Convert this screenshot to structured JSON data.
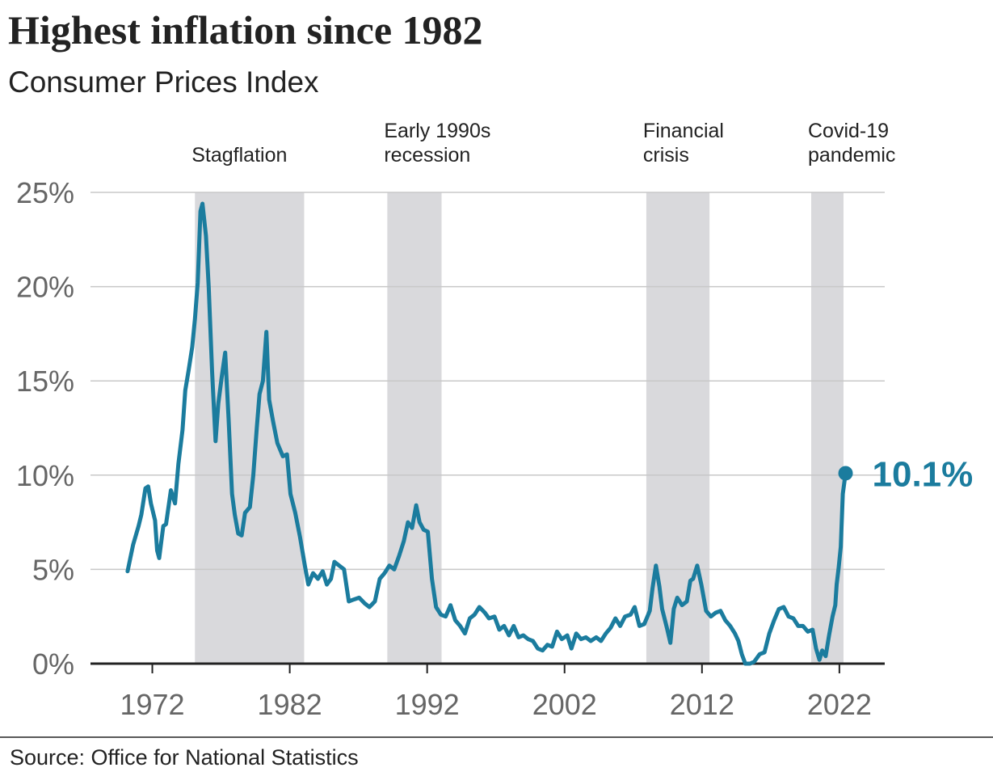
{
  "chart_data": {
    "type": "line",
    "title": "Highest inflation since 1982",
    "subtitle": "Consumer Prices Index",
    "source": "Source: Office for National Statistics",
    "end_label": "10.1%",
    "xlim": [
      1967.5,
      2025.3
    ],
    "xticks": [
      1972,
      1982,
      1992,
      2002,
      2012,
      2022
    ],
    "ylim": [
      0,
      25
    ],
    "yticks": [
      {
        "value": 0,
        "label": "0%"
      },
      {
        "value": 5,
        "label": "5%"
      },
      {
        "value": 10,
        "label": "10%"
      },
      {
        "value": 15,
        "label": "15%"
      },
      {
        "value": 20,
        "label": "20%"
      },
      {
        "value": 25,
        "label": "25%"
      }
    ],
    "grid": true,
    "shade_color": "#d9d9dc",
    "periods": [
      {
        "label": [
          "Stagflation"
        ],
        "start": 1975.1,
        "end": 1983.05
      },
      {
        "label": [
          "Early 1990s",
          "recession"
        ],
        "start": 1989.1,
        "end": 1993.05
      },
      {
        "label": [
          "Financial",
          "crisis"
        ],
        "start": 2007.95,
        "end": 2012.55
      },
      {
        "label": [
          "Covid-19",
          "pandemic"
        ],
        "start": 2019.95,
        "end": 2022.3
      }
    ],
    "x": [
      1970.2,
      1970.4,
      1970.6,
      1971.0,
      1971.2,
      1971.5,
      1971.7,
      1971.9,
      1972.2,
      1972.35,
      1972.5,
      1972.8,
      1973.0,
      1973.35,
      1973.65,
      1973.9,
      1974.2,
      1974.4,
      1974.65,
      1974.9,
      1975.1,
      1975.3,
      1975.5,
      1975.65,
      1975.9,
      1976.1,
      1976.35,
      1976.6,
      1976.8,
      1977.05,
      1977.3,
      1977.55,
      1977.8,
      1978.0,
      1978.25,
      1978.5,
      1978.75,
      1979.1,
      1979.35,
      1979.6,
      1979.8,
      1980.05,
      1980.3,
      1980.5,
      1980.8,
      1981.1,
      1981.5,
      1981.8,
      1982.05,
      1982.4,
      1982.75,
      1983.1,
      1983.35,
      1983.7,
      1984.05,
      1984.4,
      1984.7,
      1985.0,
      1985.25,
      1985.6,
      1985.95,
      1986.3,
      1986.65,
      1987.05,
      1987.45,
      1987.8,
      1988.2,
      1988.55,
      1988.9,
      1989.25,
      1989.6,
      1989.95,
      1990.3,
      1990.6,
      1990.9,
      1991.2,
      1991.45,
      1991.75,
      1992.05,
      1992.35,
      1992.65,
      1993.0,
      1993.35,
      1993.7,
      1994.05,
      1994.4,
      1994.75,
      1995.1,
      1995.45,
      1995.8,
      1996.2,
      1996.5,
      1996.9,
      1997.25,
      1997.6,
      1997.95,
      1998.3,
      1998.65,
      1999.0,
      1999.35,
      1999.7,
      2000.05,
      2000.4,
      2000.75,
      2001.1,
      2001.45,
      2001.8,
      2002.2,
      2002.5,
      2002.85,
      2003.2,
      2003.55,
      2003.9,
      2004.3,
      2004.65,
      2005.0,
      2005.35,
      2005.7,
      2006.05,
      2006.4,
      2006.8,
      2007.1,
      2007.45,
      2007.8,
      2008.2,
      2008.4,
      2008.65,
      2008.9,
      2009.1,
      2009.45,
      2009.7,
      2009.95,
      2010.2,
      2010.55,
      2010.9,
      2011.15,
      2011.35,
      2011.65,
      2011.95,
      2012.3,
      2012.65,
      2013.0,
      2013.35,
      2013.7,
      2014.05,
      2014.4,
      2014.65,
      2014.9,
      2015.15,
      2015.5,
      2015.8,
      2016.2,
      2016.55,
      2016.9,
      2017.25,
      2017.6,
      2017.95,
      2018.3,
      2018.65,
      2019.0,
      2019.35,
      2019.7,
      2020.05,
      2020.3,
      2020.55,
      2020.75,
      2021.0,
      2021.25,
      2021.5,
      2021.7,
      2021.8,
      2021.95,
      2022.1,
      2022.25,
      2022.45
    ],
    "series": [
      {
        "name": "Consumer Prices Index",
        "color": "#1b7c9e",
        "values": [
          4.9,
          5.6,
          6.3,
          7.3,
          7.9,
          9.3,
          9.4,
          8.5,
          7.6,
          6.0,
          5.6,
          7.3,
          7.4,
          9.2,
          8.5,
          10.6,
          12.4,
          14.5,
          15.6,
          16.8,
          18.3,
          20.2,
          24.0,
          24.4,
          22.7,
          20.0,
          15.5,
          11.8,
          13.8,
          15.2,
          16.5,
          13.0,
          9.0,
          7.9,
          6.9,
          6.8,
          8.0,
          8.3,
          10.0,
          12.5,
          14.3,
          15.0,
          17.6,
          14.0,
          12.8,
          11.7,
          11.0,
          11.1,
          9.0,
          8.0,
          6.7,
          5.2,
          4.2,
          4.8,
          4.5,
          4.9,
          4.2,
          4.5,
          5.4,
          5.2,
          5.0,
          3.3,
          3.4,
          3.5,
          3.2,
          3.0,
          3.3,
          4.5,
          4.8,
          5.2,
          5.0,
          5.7,
          6.5,
          7.5,
          7.2,
          8.4,
          7.5,
          7.1,
          7.0,
          4.5,
          3.0,
          2.6,
          2.5,
          3.1,
          2.3,
          2.0,
          1.6,
          2.4,
          2.6,
          3.0,
          2.7,
          2.4,
          2.5,
          1.8,
          2.0,
          1.5,
          2.0,
          1.4,
          1.5,
          1.3,
          1.2,
          0.8,
          0.7,
          1.0,
          0.9,
          1.7,
          1.3,
          1.5,
          0.8,
          1.6,
          1.3,
          1.4,
          1.2,
          1.4,
          1.2,
          1.6,
          1.9,
          2.4,
          2.0,
          2.5,
          2.6,
          3.0,
          2.0,
          2.1,
          2.8,
          4.0,
          5.2,
          4.1,
          2.9,
          1.9,
          1.1,
          2.9,
          3.5,
          3.1,
          3.3,
          4.4,
          4.5,
          5.2,
          4.2,
          2.8,
          2.5,
          2.7,
          2.8,
          2.3,
          2.0,
          1.6,
          1.2,
          0.5,
          0.0,
          0.0,
          0.1,
          0.5,
          0.6,
          1.6,
          2.3,
          2.9,
          3.0,
          2.5,
          2.4,
          2.0,
          2.0,
          1.7,
          1.8,
          0.8,
          0.2,
          0.7,
          0.4,
          1.5,
          2.5,
          3.1,
          4.2,
          5.1,
          6.2,
          9.0,
          10.1
        ]
      }
    ]
  }
}
